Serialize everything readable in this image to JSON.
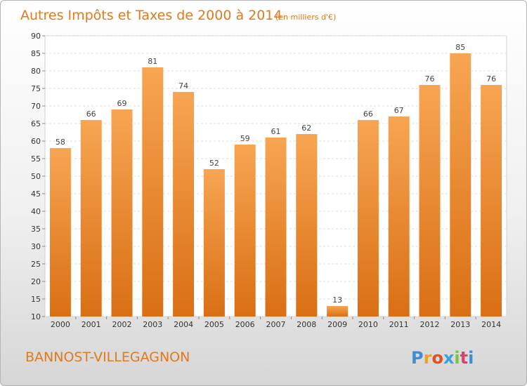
{
  "chart_data": {
    "type": "bar",
    "title": "Autres Impôts et Taxes de 2000 à 2014",
    "subtitle": "(en milliers d'€)",
    "categories": [
      "2000",
      "2001",
      "2002",
      "2003",
      "2004",
      "2005",
      "2006",
      "2007",
      "2008",
      "2009",
      "2010",
      "2011",
      "2012",
      "2013",
      "2014"
    ],
    "values": [
      58,
      66,
      69,
      81,
      74,
      52,
      59,
      61,
      62,
      13,
      66,
      67,
      76,
      85,
      76
    ],
    "ylim": [
      10,
      90
    ],
    "yticks": [
      10,
      15,
      20,
      25,
      30,
      35,
      40,
      45,
      50,
      55,
      60,
      65,
      70,
      75,
      80,
      85,
      90
    ],
    "grid": true,
    "bar_color": "#f0913a"
  },
  "location": "BANNOST-VILLEGAGNON",
  "brand": {
    "letters": [
      "P",
      "r",
      "o",
      "x",
      "i",
      "t",
      "i"
    ],
    "colors": [
      "#3b8fd6",
      "#f0a020",
      "#e05020",
      "#3aa0e0",
      "#7cc242",
      "#e04070",
      "#3b8fd6"
    ]
  }
}
